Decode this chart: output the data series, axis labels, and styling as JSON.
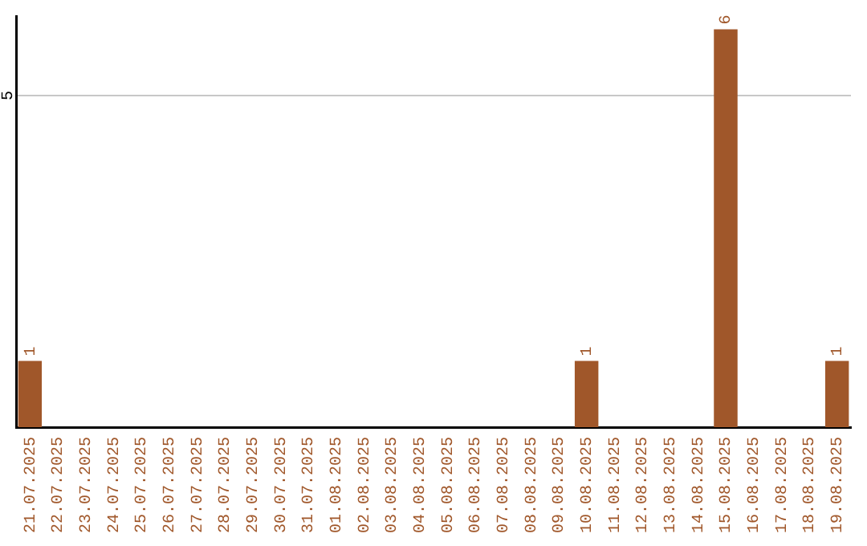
{
  "chart_data": {
    "type": "bar",
    "categories": [
      "21.07.2025",
      "22.07.2025",
      "23.07.2025",
      "24.07.2025",
      "25.07.2025",
      "26.07.2025",
      "27.07.2025",
      "28.07.2025",
      "29.07.2025",
      "30.07.2025",
      "31.07.2025",
      "01.08.2025",
      "02.08.2025",
      "03.08.2025",
      "04.08.2025",
      "05.08.2025",
      "06.08.2025",
      "07.08.2025",
      "08.08.2025",
      "09.08.2025",
      "10.08.2025",
      "11.08.2025",
      "12.08.2025",
      "13.08.2025",
      "14.08.2025",
      "15.08.2025",
      "16.08.2025",
      "17.08.2025",
      "18.08.2025",
      "19.08.2025"
    ],
    "values": [
      1,
      0,
      0,
      0,
      0,
      0,
      0,
      0,
      0,
      0,
      0,
      0,
      0,
      0,
      0,
      0,
      0,
      0,
      0,
      0,
      1,
      0,
      0,
      0,
      0,
      6,
      0,
      0,
      0,
      1
    ],
    "value_labels": [
      "1",
      null,
      null,
      null,
      null,
      null,
      null,
      null,
      null,
      null,
      null,
      null,
      null,
      null,
      null,
      null,
      null,
      null,
      null,
      null,
      "1",
      null,
      null,
      null,
      null,
      "6",
      null,
      null,
      null,
      "1"
    ],
    "color": "#a0572a",
    "ylim": [
      0,
      6.2
    ],
    "yticks": [
      5
    ],
    "grid": "y",
    "legend": false
  }
}
